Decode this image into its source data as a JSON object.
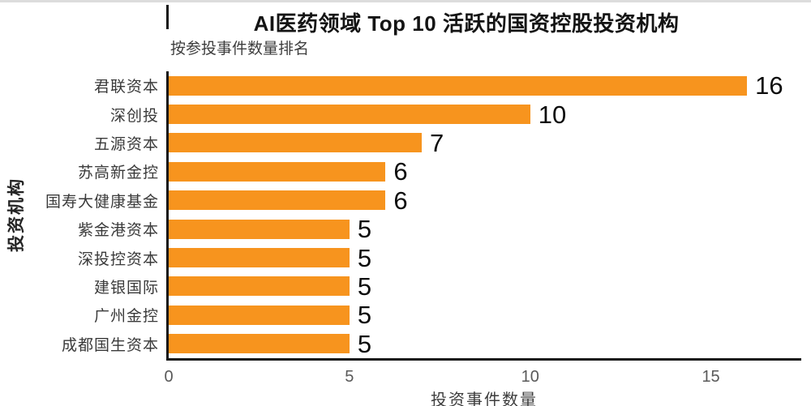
{
  "chart_data": {
    "type": "bar",
    "orientation": "horizontal",
    "title": "AI医药领域 Top 10 活跃的国资控股投资机构",
    "subtitle": "按参投事件数量排名",
    "categories": [
      "君联资本",
      "深创投",
      "五源资本",
      "苏高新金控",
      "国寿大健康基金",
      "紫金港资本",
      "深投控资本",
      "建银国际",
      "广州金控",
      "成都国生资本"
    ],
    "values": [
      16,
      10,
      7,
      6,
      6,
      5,
      5,
      5,
      5,
      5
    ],
    "xlabel": "投资事件数量",
    "ylabel": "投资机构",
    "xlim": [
      0,
      17.5
    ],
    "xticks": [
      0,
      5,
      10,
      15
    ],
    "bar_color": "#F7941E",
    "value_label_color": "#0d0d0d",
    "grid": false,
    "legend": "none",
    "value_labels": true
  }
}
